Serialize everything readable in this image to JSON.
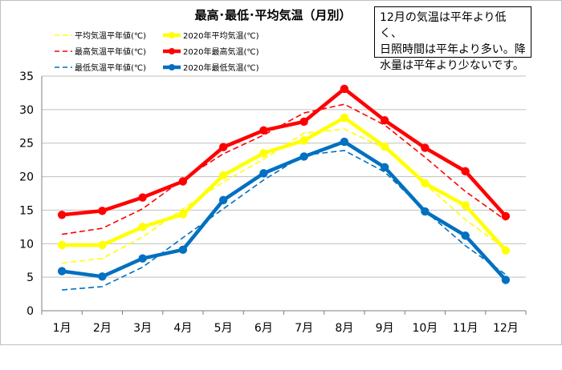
{
  "chart_data": {
    "type": "line",
    "title": "最高･最低･平均気温（月別）",
    "categories": [
      "1月",
      "2月",
      "3月",
      "4月",
      "5月",
      "6月",
      "7月",
      "8月",
      "9月",
      "10月",
      "11月",
      "12月"
    ],
    "ylim": [
      0,
      35
    ],
    "yticks": [
      0,
      5,
      10,
      15,
      20,
      25,
      30,
      35
    ],
    "grid": "horizontal",
    "legend_position": "top-left",
    "series": [
      {
        "name": "平均気温平年値(℃)",
        "color": "#FFFF00",
        "style": "dashed",
        "values": [
          7.1,
          7.8,
          11.0,
          15.2,
          19.2,
          22.6,
          26.5,
          27.1,
          24.2,
          18.9,
          13.6,
          9.2
        ]
      },
      {
        "name": "2020年平均気温(℃)",
        "color": "#FFFF00",
        "style": "solid",
        "values": [
          9.8,
          9.8,
          12.5,
          14.4,
          20.2,
          23.5,
          25.4,
          28.8,
          24.5,
          19.0,
          15.7,
          9.0
        ]
      },
      {
        "name": "最高気温平年値(℃)",
        "color": "#FF0000",
        "style": "dashed",
        "values": [
          11.4,
          12.3,
          15.2,
          19.6,
          23.4,
          26.2,
          29.5,
          30.8,
          27.7,
          22.9,
          17.8,
          13.5
        ]
      },
      {
        "name": "2020年最高気温(℃)",
        "color": "#FF0000",
        "style": "solid",
        "values": [
          14.3,
          14.9,
          16.9,
          19.3,
          24.4,
          26.9,
          28.2,
          33.1,
          28.4,
          24.3,
          20.8,
          14.1
        ]
      },
      {
        "name": "最低気温平年値(℃)",
        "color": "#0070C0",
        "style": "dashed",
        "values": [
          3.1,
          3.6,
          6.5,
          10.9,
          15.2,
          19.5,
          23.2,
          23.9,
          20.7,
          14.9,
          9.7,
          5.4
        ]
      },
      {
        "name": "2020年最低気温(℃)",
        "color": "#0070C0",
        "style": "solid",
        "values": [
          5.9,
          5.1,
          7.8,
          9.1,
          16.5,
          20.5,
          23.0,
          25.2,
          21.4,
          14.8,
          11.2,
          4.6
        ]
      }
    ]
  },
  "note": {
    "line1": "12月の気温は平年より低く、",
    "line2": "日照時間は平年より多い。降",
    "line3": "水量は平年より少ないです。"
  }
}
